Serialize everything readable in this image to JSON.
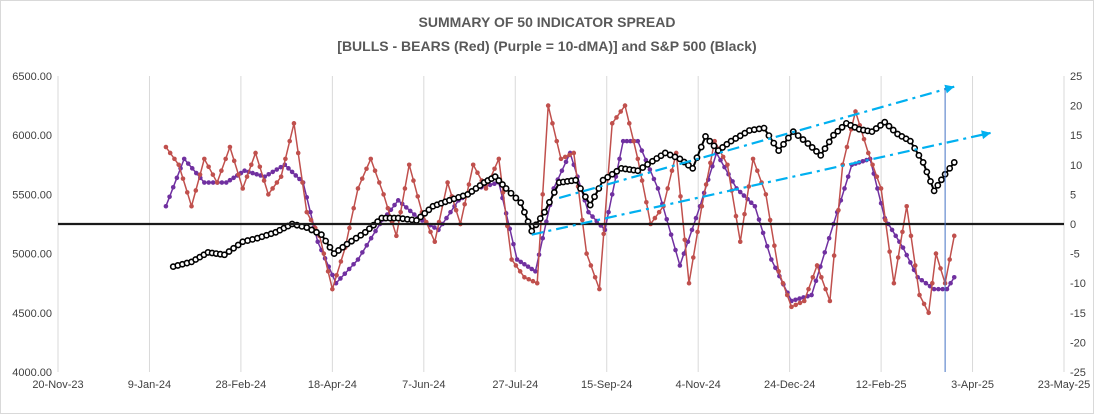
{
  "chart_data": {
    "type": "line",
    "title": "SUMMARY OF 50 INDICATOR SPREAD",
    "subtitle": "[BULLS - BEARS (Red) (Purple = 10-dMA)] and S&P 500 (Black)",
    "x_axis": {
      "type": "date",
      "range": [
        "2023-11-20",
        "2025-05-23"
      ],
      "tick_labels": [
        "20-Nov-23",
        "9-Jan-24",
        "28-Feb-24",
        "18-Apr-24",
        "7-Jun-24",
        "27-Jul-24",
        "15-Sep-24",
        "4-Nov-24",
        "24-Dec-24",
        "12-Feb-25",
        "3-Apr-25",
        "23-May-25"
      ]
    },
    "y_left": {
      "range": [
        4000,
        6500
      ],
      "tick_labels": [
        "4000.00",
        "4500.00",
        "5000.00",
        "5500.00",
        "6000.00",
        "6500.00"
      ]
    },
    "y_right": {
      "range": [
        -25,
        25
      ],
      "tick_labels": [
        "-25",
        "-20",
        "-15",
        "-10",
        "-5",
        "0",
        "5",
        "10",
        "15",
        "20",
        "25"
      ]
    },
    "grid": "vertical",
    "series": [
      {
        "axis": "left",
        "color": "#000000",
        "marker": "open-circle",
        "points": [
          [
            "2024-01-22",
            4890
          ],
          [
            "2024-02-01",
            4930
          ],
          [
            "2024-02-10",
            5010
          ],
          [
            "2024-02-19",
            4990
          ],
          [
            "2024-02-29",
            5100
          ],
          [
            "2024-03-08",
            5130
          ],
          [
            "2024-03-18",
            5180
          ],
          [
            "2024-03-27",
            5250
          ],
          [
            "2024-04-04",
            5220
          ],
          [
            "2024-04-12",
            5160
          ],
          [
            "2024-04-19",
            5000
          ],
          [
            "2024-04-26",
            5080
          ],
          [
            "2024-05-06",
            5180
          ],
          [
            "2024-05-15",
            5300
          ],
          [
            "2024-05-24",
            5300
          ],
          [
            "2024-06-03",
            5280
          ],
          [
            "2024-06-12",
            5400
          ],
          [
            "2024-06-21",
            5450
          ],
          [
            "2024-07-01",
            5500
          ],
          [
            "2024-07-10",
            5600
          ],
          [
            "2024-07-16",
            5650
          ],
          [
            "2024-07-22",
            5550
          ],
          [
            "2024-07-30",
            5430
          ],
          [
            "2024-08-05",
            5190
          ],
          [
            "2024-08-12",
            5350
          ],
          [
            "2024-08-20",
            5600
          ],
          [
            "2024-08-29",
            5620
          ],
          [
            "2024-09-06",
            5410
          ],
          [
            "2024-09-13",
            5620
          ],
          [
            "2024-09-23",
            5720
          ],
          [
            "2024-10-02",
            5700
          ],
          [
            "2024-10-10",
            5780
          ],
          [
            "2024-10-17",
            5850
          ],
          [
            "2024-10-25",
            5800
          ],
          [
            "2024-11-01",
            5720
          ],
          [
            "2024-11-08",
            5990
          ],
          [
            "2024-11-15",
            5870
          ],
          [
            "2024-11-22",
            5950
          ],
          [
            "2024-12-02",
            6040
          ],
          [
            "2024-12-10",
            6060
          ],
          [
            "2024-12-18",
            5870
          ],
          [
            "2024-12-26",
            6030
          ],
          [
            "2025-01-03",
            5930
          ],
          [
            "2025-01-10",
            5830
          ],
          [
            "2025-01-17",
            6000
          ],
          [
            "2025-01-24",
            6100
          ],
          [
            "2025-01-31",
            6050
          ],
          [
            "2025-02-07",
            6030
          ],
          [
            "2025-02-14",
            6110
          ],
          [
            "2025-02-21",
            6010
          ],
          [
            "2025-02-28",
            5950
          ],
          [
            "2025-03-07",
            5770
          ],
          [
            "2025-03-13",
            5530
          ],
          [
            "2025-03-19",
            5670
          ],
          [
            "2025-03-24",
            5770
          ]
        ]
      },
      {
        "axis": "right",
        "color": "#c0504d",
        "marker": "filled-circle",
        "points": [
          [
            "2024-01-18",
            13
          ],
          [
            "2024-01-25",
            10
          ],
          [
            "2024-02-01",
            3
          ],
          [
            "2024-02-08",
            11
          ],
          [
            "2024-02-15",
            7
          ],
          [
            "2024-02-22",
            13
          ],
          [
            "2024-02-29",
            6
          ],
          [
            "2024-03-07",
            12
          ],
          [
            "2024-03-14",
            5
          ],
          [
            "2024-03-21",
            8
          ],
          [
            "2024-03-28",
            17
          ],
          [
            "2024-04-04",
            2
          ],
          [
            "2024-04-11",
            -2
          ],
          [
            "2024-04-18",
            -11
          ],
          [
            "2024-04-25",
            -4
          ],
          [
            "2024-05-02",
            6
          ],
          [
            "2024-05-09",
            11
          ],
          [
            "2024-05-16",
            5
          ],
          [
            "2024-05-23",
            -2
          ],
          [
            "2024-05-30",
            10
          ],
          [
            "2024-06-06",
            2
          ],
          [
            "2024-06-13",
            -3
          ],
          [
            "2024-06-20",
            7
          ],
          [
            "2024-06-27",
            0
          ],
          [
            "2024-07-04",
            10
          ],
          [
            "2024-07-11",
            6
          ],
          [
            "2024-07-18",
            11
          ],
          [
            "2024-07-25",
            -6
          ],
          [
            "2024-08-01",
            -9
          ],
          [
            "2024-08-08",
            -10
          ],
          [
            "2024-08-14",
            20
          ],
          [
            "2024-08-21",
            11
          ],
          [
            "2024-08-28",
            12
          ],
          [
            "2024-09-04",
            -5
          ],
          [
            "2024-09-11",
            -11
          ],
          [
            "2024-09-18",
            17
          ],
          [
            "2024-09-25",
            20
          ],
          [
            "2024-10-02",
            11
          ],
          [
            "2024-10-09",
            0
          ],
          [
            "2024-10-16",
            3
          ],
          [
            "2024-10-23",
            12
          ],
          [
            "2024-10-30",
            -10
          ],
          [
            "2024-11-06",
            3
          ],
          [
            "2024-11-13",
            14
          ],
          [
            "2024-11-20",
            10
          ],
          [
            "2024-11-27",
            -3
          ],
          [
            "2024-12-04",
            11
          ],
          [
            "2024-12-11",
            5
          ],
          [
            "2024-12-18",
            -8
          ],
          [
            "2024-12-25",
            -14
          ],
          [
            "2025-01-01",
            -13
          ],
          [
            "2025-01-08",
            -7
          ],
          [
            "2025-01-15",
            -13
          ],
          [
            "2025-01-22",
            10
          ],
          [
            "2025-01-29",
            19
          ],
          [
            "2025-02-05",
            12
          ],
          [
            "2025-02-12",
            6
          ],
          [
            "2025-02-19",
            -10
          ],
          [
            "2025-02-26",
            3
          ],
          [
            "2025-03-05",
            -12
          ],
          [
            "2025-03-10",
            -15
          ],
          [
            "2025-03-14",
            -5
          ],
          [
            "2025-03-19",
            -10
          ],
          [
            "2025-03-24",
            -2
          ]
        ]
      },
      {
        "axis": "right",
        "color": "#7030a0",
        "marker": "filled-circle",
        "points": [
          [
            "2024-01-18",
            3
          ],
          [
            "2024-01-28",
            11
          ],
          [
            "2024-02-08",
            7
          ],
          [
            "2024-02-20",
            7
          ],
          [
            "2024-03-01",
            9
          ],
          [
            "2024-03-12",
            8
          ],
          [
            "2024-03-23",
            10
          ],
          [
            "2024-04-02",
            7
          ],
          [
            "2024-04-10",
            -3
          ],
          [
            "2024-04-20",
            -10
          ],
          [
            "2024-05-02",
            -6
          ],
          [
            "2024-05-14",
            0
          ],
          [
            "2024-05-24",
            4
          ],
          [
            "2024-06-04",
            1
          ],
          [
            "2024-06-15",
            -1
          ],
          [
            "2024-06-26",
            4
          ],
          [
            "2024-07-06",
            6
          ],
          [
            "2024-07-18",
            7
          ],
          [
            "2024-07-28",
            -6
          ],
          [
            "2024-08-07",
            -8
          ],
          [
            "2024-08-17",
            6
          ],
          [
            "2024-08-26",
            12
          ],
          [
            "2024-09-05",
            2
          ],
          [
            "2024-09-14",
            -1
          ],
          [
            "2024-09-24",
            14
          ],
          [
            "2024-10-02",
            14
          ],
          [
            "2024-10-13",
            6
          ],
          [
            "2024-10-25",
            -7
          ],
          [
            "2024-11-05",
            3
          ],
          [
            "2024-11-14",
            12
          ],
          [
            "2024-11-25",
            6
          ],
          [
            "2024-12-05",
            3
          ],
          [
            "2024-12-14",
            -6
          ],
          [
            "2024-12-25",
            -13
          ],
          [
            "2025-01-05",
            -12
          ],
          [
            "2025-01-17",
            0
          ],
          [
            "2025-01-27",
            10
          ],
          [
            "2025-02-06",
            11
          ],
          [
            "2025-02-14",
            1
          ],
          [
            "2025-02-24",
            -4
          ],
          [
            "2025-03-04",
            -9
          ],
          [
            "2025-03-13",
            -11
          ],
          [
            "2025-03-20",
            -11
          ],
          [
            "2025-03-24",
            -9
          ]
        ]
      },
      {
        "axis": "right",
        "color": "#1a1a1a",
        "marker": "none",
        "points": [
          [
            "2023-11-20",
            0
          ],
          [
            "2025-05-23",
            0
          ]
        ]
      },
      {
        "axis": "left",
        "color": "#00b0f0",
        "marker": "none",
        "dash": "dash-dot",
        "points": [
          [
            "2024-08-20",
            5470
          ],
          [
            "2025-03-24",
            6410
          ]
        ]
      },
      {
        "axis": "left",
        "color": "#00b0f0",
        "marker": "none",
        "dash": "dash-dot",
        "points": [
          [
            "2024-08-05",
            5160
          ],
          [
            "2025-04-13",
            6020
          ]
        ]
      },
      {
        "axis": "left",
        "color": "#4472c4",
        "marker": "none",
        "points": [
          [
            "2025-03-19",
            6400
          ],
          [
            "2025-03-19",
            4000
          ]
        ]
      }
    ]
  }
}
